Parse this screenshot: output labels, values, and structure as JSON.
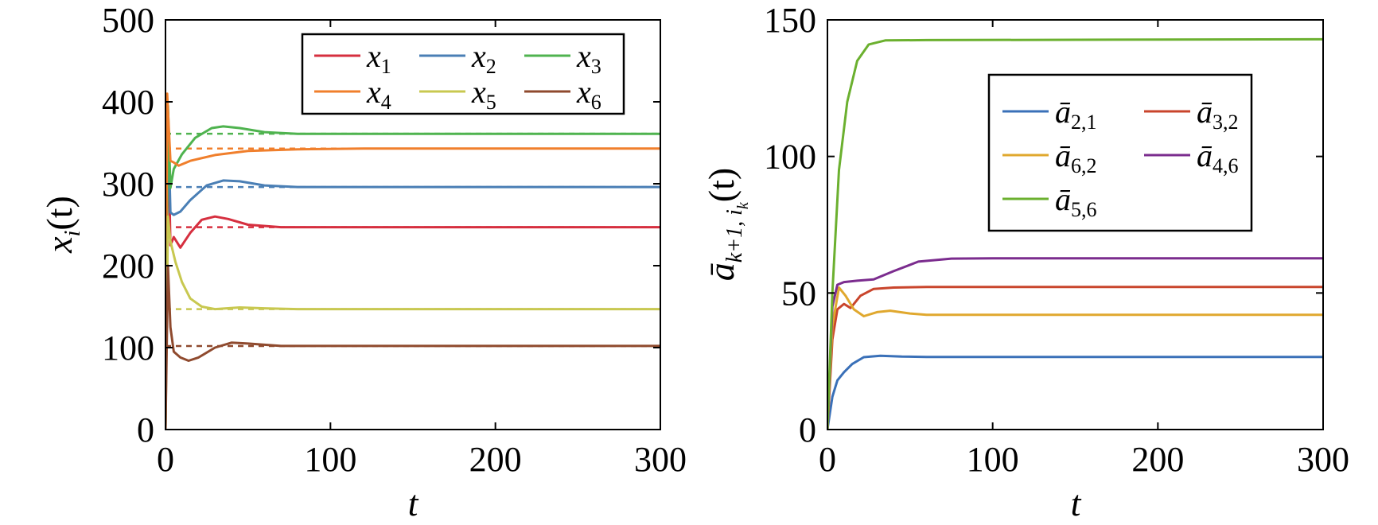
{
  "chart_data": [
    {
      "type": "line",
      "xlabel": "t",
      "ylabel_main": "x",
      "ylabel_sub": "i",
      "ylabel_rest": "(t)",
      "xlim": [
        0,
        300
      ],
      "ylim": [
        0,
        500
      ],
      "xticks": [
        "0",
        "100",
        "200",
        "300"
      ],
      "yticks": [
        "0",
        "100",
        "200",
        "300",
        "400",
        "500"
      ],
      "grid": false,
      "legend_position": "top-right",
      "reference_lines_dashed": true,
      "series": [
        {
          "name": "x",
          "sub": "1",
          "color": "#d62f3f",
          "steady": 247,
          "points": [
            [
              0,
              0
            ],
            [
              1.5,
              380
            ],
            [
              3,
              225
            ],
            [
              5,
              235
            ],
            [
              9,
              222
            ],
            [
              15,
              240
            ],
            [
              22,
              256
            ],
            [
              30,
              260
            ],
            [
              38,
              257
            ],
            [
              50,
              250
            ],
            [
              70,
              247
            ],
            [
              100,
              247
            ],
            [
              300,
              247
            ]
          ]
        },
        {
          "name": "x",
          "sub": "2",
          "color": "#4a7fb5",
          "steady": 296,
          "points": [
            [
              0,
              0
            ],
            [
              1.5,
              390
            ],
            [
              3,
              265
            ],
            [
              5,
              262
            ],
            [
              9,
              266
            ],
            [
              15,
              280
            ],
            [
              25,
              298
            ],
            [
              35,
              304
            ],
            [
              45,
              303
            ],
            [
              60,
              298
            ],
            [
              80,
              296
            ],
            [
              100,
              296
            ],
            [
              300,
              296
            ]
          ]
        },
        {
          "name": "x",
          "sub": "3",
          "color": "#4fb34f",
          "steady": 361,
          "points": [
            [
              0,
              0
            ],
            [
              1.5,
              395
            ],
            [
              3,
              295
            ],
            [
              5,
              318
            ],
            [
              10,
              336
            ],
            [
              18,
              356
            ],
            [
              28,
              368
            ],
            [
              35,
              370
            ],
            [
              45,
              368
            ],
            [
              60,
              363
            ],
            [
              80,
              361
            ],
            [
              100,
              361
            ],
            [
              300,
              361
            ]
          ]
        },
        {
          "name": "x",
          "sub": "4",
          "color": "#f07f2c",
          "steady": 343,
          "points": [
            [
              0,
              0
            ],
            [
              1,
              410
            ],
            [
              3,
              328
            ],
            [
              5,
              326
            ],
            [
              8,
              322
            ],
            [
              15,
              328
            ],
            [
              30,
              335
            ],
            [
              50,
              340
            ],
            [
              80,
              342
            ],
            [
              120,
              343
            ],
            [
              300,
              343
            ]
          ]
        },
        {
          "name": "x",
          "sub": "5",
          "color": "#c8c850",
          "steady": 147,
          "points": [
            [
              0,
              0
            ],
            [
              1.5,
              260
            ],
            [
              3,
              230
            ],
            [
              6,
              205
            ],
            [
              10,
              180
            ],
            [
              15,
              160
            ],
            [
              22,
              150
            ],
            [
              30,
              147
            ],
            [
              45,
              149
            ],
            [
              60,
              148
            ],
            [
              80,
              147
            ],
            [
              300,
              147
            ]
          ]
        },
        {
          "name": "x",
          "sub": "6",
          "color": "#8f4a2e",
          "steady": 102,
          "points": [
            [
              0,
              0
            ],
            [
              1.5,
              200
            ],
            [
              3,
              125
            ],
            [
              5,
              95
            ],
            [
              9,
              88
            ],
            [
              14,
              84
            ],
            [
              20,
              88
            ],
            [
              30,
              100
            ],
            [
              40,
              106
            ],
            [
              50,
              105
            ],
            [
              70,
              102
            ],
            [
              100,
              102
            ],
            [
              300,
              102
            ]
          ]
        }
      ]
    },
    {
      "type": "line",
      "xlabel": "t",
      "ylabel_text": "ā",
      "ylabel_sub": "k+1, i",
      "ylabel_subsub": "k",
      "ylabel_rest": "(t)",
      "xlim": [
        0,
        300
      ],
      "ylim": [
        0,
        150
      ],
      "xticks": [
        "0",
        "100",
        "200",
        "300"
      ],
      "yticks": [
        "0",
        "50",
        "100",
        "150"
      ],
      "grid": false,
      "legend_position": "top-center",
      "series": [
        {
          "name": "ā",
          "sub": "2,1",
          "color": "#3a70b8",
          "points": [
            [
              0,
              0
            ],
            [
              3,
              12
            ],
            [
              6,
              18
            ],
            [
              10,
              21
            ],
            [
              15,
              24
            ],
            [
              22,
              26.5
            ],
            [
              32,
              27
            ],
            [
              45,
              26.7
            ],
            [
              60,
              26.6
            ],
            [
              300,
              26.6
            ]
          ]
        },
        {
          "name": "ā",
          "sub": "3,2",
          "color": "#c9452c",
          "points": [
            [
              0,
              0
            ],
            [
              3,
              33
            ],
            [
              6,
              44
            ],
            [
              10,
              46
            ],
            [
              14,
              44.5
            ],
            [
              20,
              49
            ],
            [
              28,
              51.5
            ],
            [
              40,
              52
            ],
            [
              60,
              52.2
            ],
            [
              300,
              52.2
            ]
          ]
        },
        {
          "name": "ā",
          "sub": "6,2",
          "color": "#e0a82e",
          "points": [
            [
              0,
              0
            ],
            [
              3,
              38
            ],
            [
              7,
              52
            ],
            [
              11,
              49
            ],
            [
              16,
              44
            ],
            [
              22,
              41.5
            ],
            [
              30,
              43
            ],
            [
              38,
              43.5
            ],
            [
              50,
              42.5
            ],
            [
              60,
              42
            ],
            [
              300,
              42
            ]
          ]
        },
        {
          "name": "ā",
          "sub": "4,6",
          "color": "#7b2c8e",
          "points": [
            [
              0,
              0
            ],
            [
              3,
              45
            ],
            [
              6,
              53
            ],
            [
              10,
              54
            ],
            [
              18,
              54.5
            ],
            [
              28,
              55
            ],
            [
              40,
              58
            ],
            [
              55,
              61.5
            ],
            [
              75,
              62.6
            ],
            [
              100,
              62.7
            ],
            [
              300,
              62.7
            ]
          ]
        },
        {
          "name": "ā",
          "sub": "5,6",
          "color": "#6bb02f",
          "points": [
            [
              0,
              0
            ],
            [
              3,
              50
            ],
            [
              7,
              95
            ],
            [
              12,
              120
            ],
            [
              18,
              135
            ],
            [
              25,
              141
            ],
            [
              35,
              142.5
            ],
            [
              60,
              142.6
            ],
            [
              300,
              142.9
            ]
          ]
        }
      ]
    }
  ]
}
